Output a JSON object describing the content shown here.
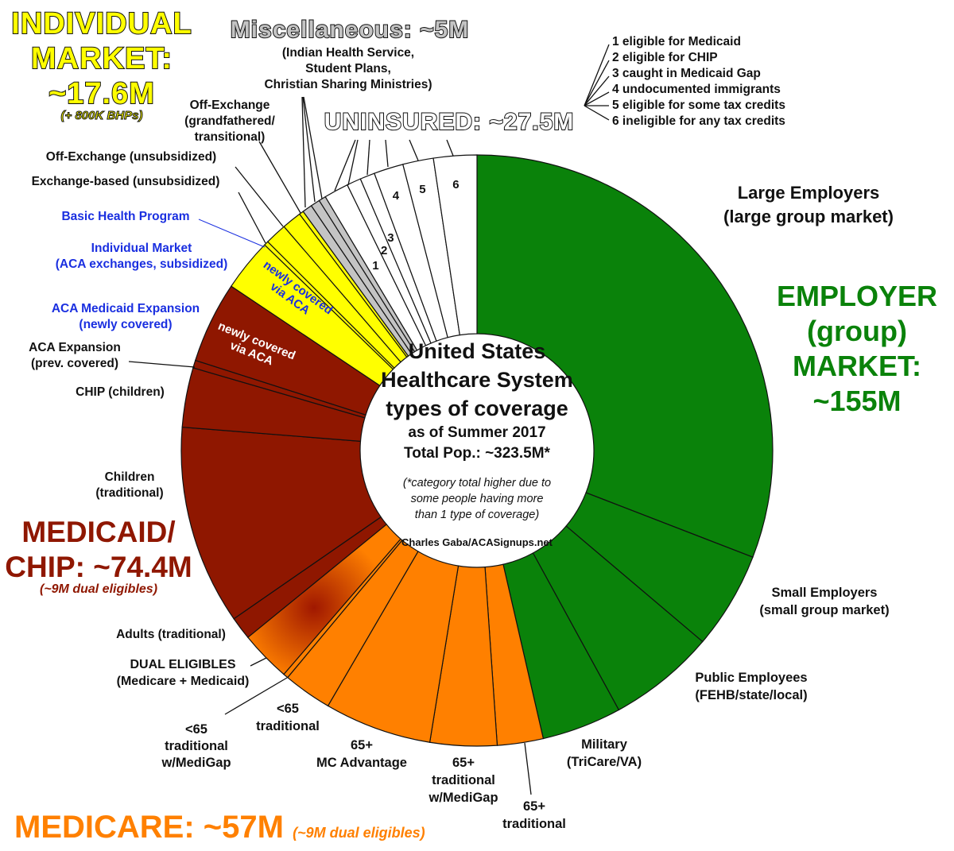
{
  "chart_data": {
    "type": "pie",
    "variant": "donut",
    "title": [
      "United States",
      "Healthcare System",
      "types of coverage"
    ],
    "subtitle": [
      "as of Summer 2017",
      "Total Pop.: ~323.5M*"
    ],
    "note": [
      "(*category total higher due to",
      "some people having more",
      "than 1 type of coverage)"
    ],
    "credit": "Charles Gaba/ACASignups.net",
    "unit": "millions (estimated from slice size)",
    "segments": [
      {
        "category": "employer",
        "label": "Large Employers (large group market)",
        "value": 103.4,
        "color": "#0a820a"
      },
      {
        "category": "employer",
        "label": "Small Employers (small group market)",
        "value": 17.8,
        "color": "#0a820a"
      },
      {
        "category": "employer",
        "label": "Public Employees (FEHB/state/local)",
        "value": 19.6,
        "color": "#0a820a"
      },
      {
        "category": "employer",
        "label": "Military (TriCare/VA)",
        "value": 14.6,
        "color": "#0a820a"
      },
      {
        "category": "medicare",
        "label": "65+ traditional",
        "value": 8.4,
        "color": "#ff8000"
      },
      {
        "category": "medicare",
        "label": "65+ traditional w/MediGap",
        "value": 12.2,
        "color": "#ff8000"
      },
      {
        "category": "medicare",
        "label": "65+ MC Advantage",
        "value": 19.6,
        "color": "#ff8000"
      },
      {
        "category": "medicare",
        "label": "<65 traditional",
        "value": 8.9,
        "color": "#ff8000"
      },
      {
        "category": "medicare",
        "label": "<65 traditional w/MediGap",
        "value": 0.9,
        "color": "#ff8000"
      },
      {
        "category": "dual",
        "label": "DUAL ELIGIBLES (Medicare + Medicaid)",
        "value": 9.3,
        "color": "gradient"
      },
      {
        "category": "medicaid",
        "label": "Adults (traditional)",
        "value": 4.2,
        "color": "#8f1700"
      },
      {
        "category": "medicaid",
        "label": "Children (traditional)",
        "value": 36.5,
        "color": "#8f1700"
      },
      {
        "category": "medicaid",
        "label": "CHIP (children)",
        "value": 10.9,
        "color": "#8f1700"
      },
      {
        "category": "medicaid",
        "label": "ACA Expansion (prev. covered)",
        "value": 1.4,
        "color": "#8f1700"
      },
      {
        "category": "medicaid",
        "label": "ACA Medicaid Expansion (newly covered)",
        "value": 14.9,
        "color": "#8f1700"
      },
      {
        "category": "individual",
        "label": "Individual Market (ACA exchanges, subsidized)",
        "value": 9.6,
        "color": "#ffff00"
      },
      {
        "category": "individual",
        "label": "Basic Health Program",
        "value": 0.8,
        "color": "#ffff00"
      },
      {
        "category": "individual",
        "label": "Exchange-based (unsubsidized)",
        "value": 4.0,
        "color": "#ffff00"
      },
      {
        "category": "individual",
        "label": "Off-Exchange (unsubsidized)",
        "value": 3.6,
        "color": "#ffff00"
      },
      {
        "category": "individual",
        "label": "Off-Exchange (grandfathered/transitional)",
        "value": 0.8,
        "color": "#ffff00"
      },
      {
        "category": "misc",
        "label": "Indian Health Service",
        "value": 1.8,
        "color": "#c4c4c4"
      },
      {
        "category": "misc",
        "label": "Student Plans",
        "value": 1.7,
        "color": "#c4c4c4"
      },
      {
        "category": "misc",
        "label": "Christian Sharing Ministries",
        "value": 1.3,
        "color": "#c4c4c4"
      },
      {
        "category": "uninsured",
        "label": "1",
        "value": 4.5,
        "color": "#ffffff"
      },
      {
        "category": "uninsured",
        "label": "2",
        "value": 2.6,
        "color": "#ffffff"
      },
      {
        "category": "uninsured",
        "label": "3",
        "value": 2.7,
        "color": "#ffffff"
      },
      {
        "category": "uninsured",
        "label": "4",
        "value": 5.4,
        "color": "#ffffff"
      },
      {
        "category": "uninsured",
        "label": "5",
        "value": 5.6,
        "color": "#ffffff"
      },
      {
        "category": "uninsured",
        "label": "6",
        "value": 7.9,
        "color": "#ffffff"
      }
    ],
    "dual_gradient": [
      "#a01800",
      "#ff8000"
    ]
  },
  "headings": {
    "individual": [
      "INDIVIDUAL",
      "MARKET:",
      "~17.6M"
    ],
    "individual_sub": "(+ 800K BHPs)",
    "misc": "Miscellaneous: ~5M",
    "misc_sub": [
      "(Indian Health Service,",
      "Student Plans,",
      "Christian Sharing Ministries)"
    ],
    "uninsured": "UNINSURED: ~27.5M",
    "employer": [
      "EMPLOYER",
      "(group)",
      "MARKET:",
      "~155M"
    ],
    "medicaid": [
      "MEDICAID/",
      "CHIP: ~74.4M"
    ],
    "medicaid_sub": "(~9M dual eligibles)",
    "medicare": "MEDICARE: ~57M",
    "medicare_sub": "(~9M dual eligibles)"
  },
  "uninsured_legend": [
    "1 eligible for Medicaid",
    "2 eligible for CHIP",
    "3 caught in Medicaid Gap",
    "4 undocumented immigrants",
    "5 eligible for some tax credits",
    "6 ineligible for any tax credits"
  ],
  "labels": {
    "large_emp": [
      "Large Employers",
      "(large group market)"
    ],
    "small_emp": [
      "Small Employers",
      "(small group market)"
    ],
    "public_emp": [
      "Public Employees",
      "(FEHB/state/local)"
    ],
    "military": [
      "Military",
      "(TriCare/VA)"
    ],
    "m65_trad": [
      "65+",
      "traditional"
    ],
    "m65_medigap": [
      "65+",
      "traditional",
      "w/MediGap"
    ],
    "m65_adv": [
      "65+",
      "MC Advantage"
    ],
    "u65_trad": [
      "<65",
      "traditional"
    ],
    "u65_medigap": [
      "<65",
      "traditional",
      "w/MediGap"
    ],
    "dual": [
      "DUAL ELIGIBLES",
      "(Medicare + Medicaid)"
    ],
    "adults": [
      "Adults (traditional)"
    ],
    "children": [
      "Children",
      "(traditional)"
    ],
    "chip": [
      "CHIP (children)"
    ],
    "aca_prev": [
      "ACA Expansion",
      "(prev. covered)"
    ],
    "aca_new": [
      "ACA Medicaid Expansion",
      "(newly covered)"
    ],
    "ind_sub": [
      "Individual Market",
      "(ACA exchanges, subsidized)"
    ],
    "bhp": [
      "Basic Health Program"
    ],
    "exch_unsub": [
      "Exchange-based (unsubsidized)"
    ],
    "offex_unsub": [
      "Off-Exchange (unsubsidized)"
    ],
    "offex_gf": [
      "Off-Exchange",
      "(grandfathered/",
      "transitional)"
    ],
    "newly_yellow": [
      "newly covered",
      "via ACA"
    ],
    "newly_red": [
      "newly covered",
      "via ACA"
    ]
  }
}
